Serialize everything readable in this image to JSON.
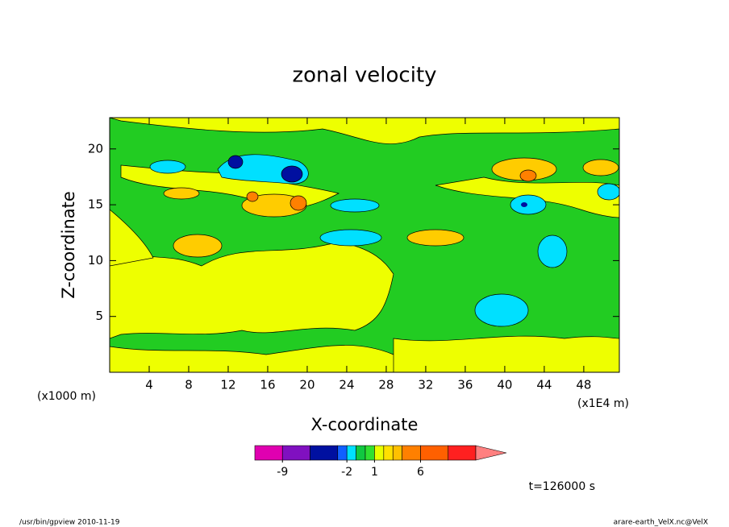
{
  "chart_data": {
    "type": "contour",
    "title": "zonal velocity",
    "xlabel": "X-coordinate",
    "ylabel": "Z-coordinate",
    "xunit": "(x1000 m)",
    "xunit2": "(x1E4 m)",
    "xlim": [
      0,
      51.6
    ],
    "xticks": [
      4,
      8,
      12,
      16,
      20,
      24,
      28,
      32,
      36,
      40,
      44,
      48
    ],
    "ylim": [
      0,
      22.8
    ],
    "yticks": [
      5,
      10,
      15,
      20
    ],
    "colorbar": {
      "levels": [
        -12,
        -9,
        -6,
        -3,
        -2,
        -1,
        0,
        1,
        2,
        3,
        4,
        6,
        9,
        12
      ],
      "colors": [
        "#e000b0",
        "#8010c0",
        "#0010a0",
        "#1060ff",
        "#00e0ff",
        "#10c840",
        "#30e030",
        "#e8ff00",
        "#ffe000",
        "#ffc000",
        "#ff8000",
        "#ff6000",
        "#ff2020"
      ],
      "extend_color": "#ff8080",
      "ticks": [
        -9,
        -2,
        1,
        6
      ]
    },
    "time_label": "t=126000 s",
    "footer_left": "/usr/bin/gpview  2010-11-19",
    "footer_right": "arare-earth_VelX.nc@VelX"
  }
}
